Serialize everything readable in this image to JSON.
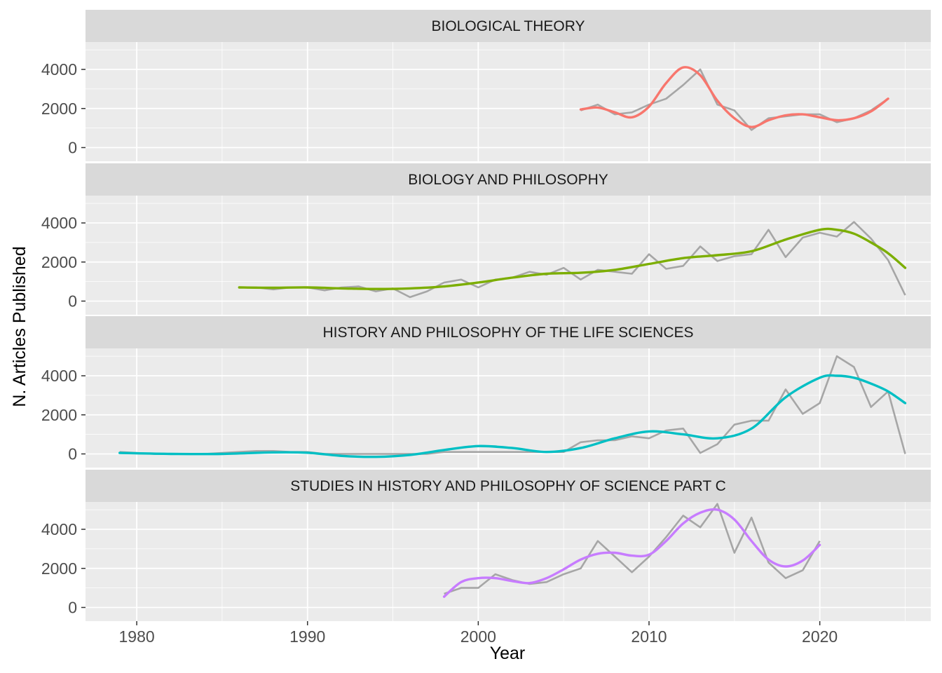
{
  "chart_data": {
    "type": "line",
    "facet": "vertical",
    "xlabel": "Year",
    "ylabel": "N. Articles Published",
    "xlim": [
      1977,
      2026.5
    ],
    "x_ticks": [
      1980,
      1990,
      2000,
      2010,
      2020
    ],
    "ylim": [
      -700,
      5400
    ],
    "y_ticks": [
      0,
      2000,
      4000
    ],
    "grid": true,
    "legend": "none",
    "colors": {
      "raw": "#a6a6a6",
      "panel_bg": "#ebebeb",
      "strip_bg": "#d9d9d9",
      "grid": "#ffffff"
    },
    "panels": [
      {
        "title": "BIOLOGICAL THEORY",
        "color": "#F8766D",
        "raw": {
          "x": [
            2006,
            2007,
            2008,
            2009,
            2010,
            2011,
            2012,
            2013,
            2014,
            2015,
            2016,
            2017,
            2018,
            2019,
            2020,
            2021,
            2022,
            2023,
            2024
          ],
          "y": [
            1900,
            2200,
            1700,
            1800,
            2200,
            2500,
            3200,
            4000,
            2200,
            1900,
            900,
            1500,
            1600,
            1700,
            1700,
            1300,
            1500,
            1900,
            2500
          ]
        },
        "smooth": {
          "x": [
            2006,
            2007,
            2008,
            2009,
            2010,
            2011,
            2012,
            2013,
            2014,
            2015,
            2016,
            2017,
            2018,
            2019,
            2020,
            2021,
            2022,
            2023,
            2024
          ],
          "y": [
            1950,
            2050,
            1800,
            1550,
            2100,
            3300,
            4100,
            3700,
            2400,
            1500,
            1050,
            1400,
            1650,
            1700,
            1550,
            1400,
            1500,
            1850,
            2500
          ]
        }
      },
      {
        "title": "BIOLOGY AND PHILOSOPHY",
        "color": "#7CAE00",
        "raw": {
          "x": [
            1986,
            1987,
            1988,
            1989,
            1990,
            1991,
            1992,
            1993,
            1994,
            1995,
            1996,
            1997,
            1998,
            1999,
            2000,
            2001,
            2002,
            2003,
            2004,
            2005,
            2006,
            2007,
            2008,
            2009,
            2010,
            2011,
            2012,
            2013,
            2014,
            2015,
            2016,
            2017,
            2018,
            2019,
            2020,
            2021,
            2022,
            2023,
            2024,
            2025
          ],
          "y": [
            700,
            700,
            600,
            700,
            700,
            550,
            700,
            750,
            500,
            650,
            200,
            500,
            950,
            1100,
            700,
            1100,
            1200,
            1500,
            1350,
            1700,
            1100,
            1600,
            1500,
            1400,
            2400,
            1650,
            1800,
            2800,
            2050,
            2300,
            2400,
            3650,
            2250,
            3250,
            3500,
            3300,
            4050,
            3200,
            2100,
            300
          ]
        },
        "smooth": {
          "x": [
            1986,
            1988,
            1990,
            1992,
            1994,
            1996,
            1998,
            2000,
            2002,
            2004,
            2006,
            2008,
            2010,
            2012,
            2014,
            2016,
            2018,
            2020,
            2021,
            2022,
            2023,
            2024,
            2025
          ],
          "y": [
            700,
            680,
            700,
            650,
            620,
            650,
            750,
            950,
            1200,
            1400,
            1450,
            1600,
            1900,
            2200,
            2350,
            2550,
            3150,
            3650,
            3650,
            3450,
            3000,
            2450,
            1700
          ]
        }
      },
      {
        "title": "HISTORY AND PHILOSOPHY OF THE LIFE SCIENCES",
        "color": "#00BFC4",
        "raw": {
          "x": [
            1979,
            1980,
            1981,
            1982,
            1983,
            1984,
            1985,
            1986,
            1987,
            1988,
            1989,
            1990,
            1991,
            1992,
            1993,
            1994,
            1995,
            1996,
            1997,
            1998,
            1999,
            2000,
            2001,
            2002,
            2003,
            2004,
            2005,
            2006,
            2007,
            2008,
            2009,
            2010,
            2011,
            2012,
            2013,
            2014,
            2015,
            2016,
            2017,
            2018,
            2019,
            2020,
            2021,
            2022,
            2023,
            2024,
            2025
          ],
          "y": [
            100,
            50,
            0,
            0,
            0,
            0,
            50,
            100,
            150,
            150,
            100,
            100,
            0,
            0,
            0,
            0,
            0,
            0,
            0,
            100,
            100,
            100,
            100,
            100,
            100,
            100,
            100,
            600,
            700,
            700,
            900,
            800,
            1200,
            1300,
            50,
            500,
            1500,
            1700,
            1700,
            3300,
            2050,
            2600,
            5000,
            4450,
            2400,
            3200,
            0
          ]
        },
        "smooth": {
          "x": [
            1979,
            1982,
            1985,
            1988,
            1990,
            1992,
            1994,
            1996,
            1998,
            2000,
            2002,
            2004,
            2006,
            2008,
            2010,
            2012,
            2014,
            2016,
            2018,
            2020,
            2021,
            2022,
            2023,
            2024,
            2025
          ],
          "y": [
            50,
            0,
            0,
            80,
            60,
            -100,
            -150,
            -50,
            200,
            400,
            300,
            100,
            300,
            800,
            1150,
            1000,
            800,
            1300,
            2900,
            3900,
            4000,
            3900,
            3600,
            3200,
            2600
          ]
        }
      },
      {
        "title": "STUDIES IN HISTORY AND PHILOSOPHY OF SCIENCE PART C",
        "color": "#C77CFF",
        "raw": {
          "x": [
            1998,
            1999,
            2000,
            2001,
            2002,
            2003,
            2004,
            2005,
            2006,
            2007,
            2008,
            2009,
            2010,
            2011,
            2012,
            2013,
            2014,
            2015,
            2016,
            2017,
            2018,
            2019,
            2020
          ],
          "y": [
            700,
            1000,
            1000,
            1700,
            1400,
            1200,
            1300,
            1700,
            2000,
            3400,
            2600,
            1800,
            2600,
            3600,
            4700,
            4100,
            5300,
            2800,
            4600,
            2300,
            1500,
            1900,
            3400
          ]
        },
        "smooth": {
          "x": [
            1998,
            1999,
            2000,
            2001,
            2002,
            2003,
            2004,
            2005,
            2006,
            2007,
            2008,
            2009,
            2010,
            2011,
            2012,
            2013,
            2014,
            2015,
            2016,
            2017,
            2018,
            2019,
            2020
          ],
          "y": [
            550,
            1300,
            1500,
            1500,
            1350,
            1250,
            1500,
            1950,
            2450,
            2750,
            2800,
            2650,
            2700,
            3400,
            4300,
            4850,
            5000,
            4500,
            3400,
            2450,
            2100,
            2400,
            3200
          ]
        }
      }
    ]
  }
}
